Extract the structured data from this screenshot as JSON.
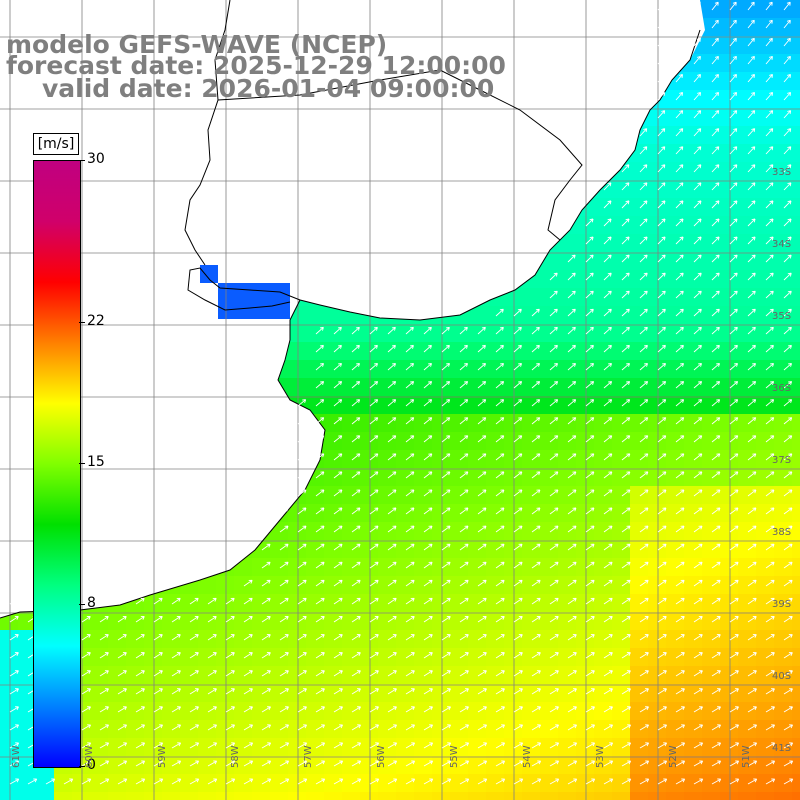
{
  "titles": {
    "model": "modelo GEFS-WAVE (NCEP)",
    "forecast": "forecast date: 2025-12-29 12:00:00",
    "valid": "valid date: 2026-01-04 09:00:00"
  },
  "colorbar": {
    "unit": "[m/s]",
    "ticks": [
      {
        "value": "30",
        "v": 30
      },
      {
        "value": "22",
        "v": 22
      },
      {
        "value": "15",
        "v": 15
      },
      {
        "value": "8",
        "v": 8
      },
      {
        "value": "0",
        "v": 0
      }
    ],
    "min": 0,
    "max": 30,
    "colors": [
      "#0000ff",
      "#0080ff",
      "#00ffff",
      "#00ff80",
      "#00e000",
      "#80ff00",
      "#ffff00",
      "#ff8000",
      "#ff0000",
      "#d0006a",
      "#c00080"
    ]
  },
  "axes": {
    "lat_labels": [
      "33S",
      "34S",
      "35S",
      "36S",
      "37S",
      "38S",
      "39S",
      "40S",
      "41S"
    ],
    "lon_labels": [
      "61W",
      "60W",
      "59W",
      "58W",
      "57W",
      "56W",
      "55W",
      "54W",
      "53W",
      "52W",
      "51W"
    ]
  },
  "map_colors": {
    "land": "#ffffff",
    "coast": "#000000",
    "grid": "#808080",
    "arrow": "#ffffff"
  }
}
